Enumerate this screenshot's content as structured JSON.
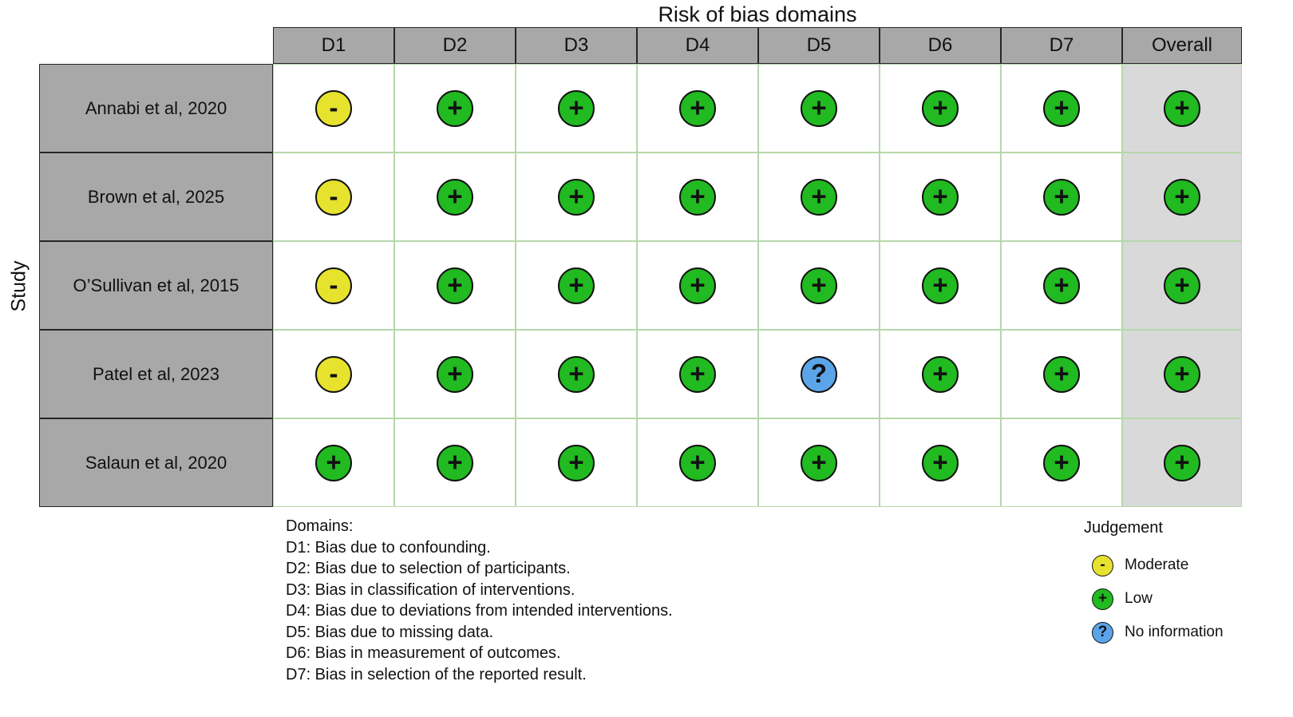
{
  "chart_data": {
    "type": "heatmap",
    "variant": "risk-of-bias-traffic-light",
    "title": "Risk of bias domains",
    "y_axis_label": "Study",
    "columns": [
      "D1",
      "D2",
      "D3",
      "D4",
      "D5",
      "D6",
      "D7",
      "Overall"
    ],
    "rows": [
      {
        "study": "Annabi et al, 2020",
        "judgements": [
          "moderate",
          "low",
          "low",
          "low",
          "low",
          "low",
          "low",
          "low"
        ]
      },
      {
        "study": "Brown et al, 2025",
        "judgements": [
          "moderate",
          "low",
          "low",
          "low",
          "low",
          "low",
          "low",
          "low"
        ]
      },
      {
        "study": "O’Sullivan et al, 2015",
        "judgements": [
          "moderate",
          "low",
          "low",
          "low",
          "low",
          "low",
          "low",
          "low"
        ]
      },
      {
        "study": "Patel et al, 2023",
        "judgements": [
          "moderate",
          "low",
          "low",
          "low",
          "no_information",
          "low",
          "low",
          "low"
        ]
      },
      {
        "study": "Salaun et al, 2020",
        "judgements": [
          "low",
          "low",
          "low",
          "low",
          "low",
          "low",
          "low",
          "low"
        ]
      }
    ],
    "judgements": {
      "low": {
        "label": "Low",
        "symbol": "+",
        "color": "#21ba21"
      },
      "moderate": {
        "label": "Moderate",
        "symbol": "-",
        "color": "#e7e22d"
      },
      "no_information": {
        "label": "No information",
        "symbol": "?",
        "color": "#5ba4ea"
      }
    },
    "legend": {
      "title": "Judgement",
      "order": [
        "moderate",
        "low",
        "no_information"
      ]
    },
    "footnotes": {
      "heading": "Domains:",
      "lines": [
        "D1: Bias due to confounding.",
        "D2: Bias due to selection of participants.",
        "D3: Bias in classification of interventions.",
        "D4: Bias due to deviations from intended interventions.",
        "D5: Bias due to missing data.",
        "D6: Bias in measurement of outcomes.",
        "D7: Bias in selection of the reported result."
      ]
    },
    "palette": {
      "header_fill": "#a8a8a8",
      "overall_fill": "#d9d9d9",
      "grid_line": "#b5d8a9"
    }
  }
}
